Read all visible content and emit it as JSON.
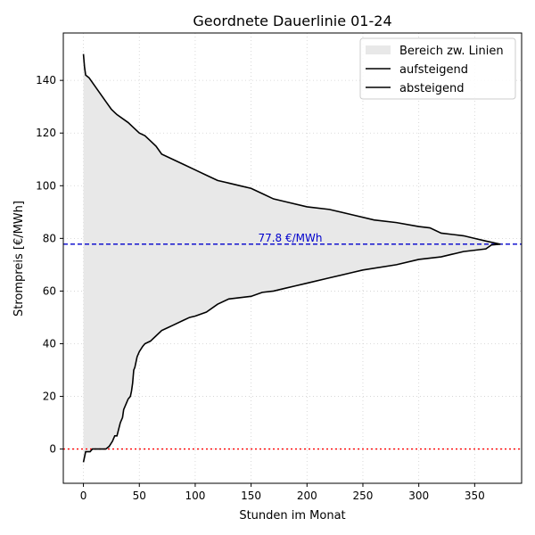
{
  "chart_data": {
    "type": "area",
    "title": "Geordnete Dauerlinie 01-24",
    "xlabel": "Stunden im Monat",
    "ylabel": "Strompreis [€/MWh]",
    "xlim": [
      -18,
      392
    ],
    "ylim": [
      -13,
      158
    ],
    "xticks": [
      0,
      50,
      100,
      150,
      200,
      250,
      300,
      350
    ],
    "yticks": [
      0,
      20,
      40,
      60,
      80,
      100,
      120,
      140
    ],
    "grid": true,
    "legend_position": "top-right",
    "legend": [
      {
        "label": "Bereich zw. Linien",
        "kind": "patch",
        "color": "#e8e8e8"
      },
      {
        "label": "aufsteigend",
        "kind": "line",
        "color": "#000000"
      },
      {
        "label": "absteigend",
        "kind": "line",
        "color": "#000000"
      }
    ],
    "series": [
      {
        "name": "aufsteigend",
        "color": "#000000",
        "x": [
          0,
          1,
          2,
          6,
          8,
          10,
          15,
          20,
          23,
          26,
          28,
          30,
          33,
          35,
          36,
          38,
          40,
          42,
          43,
          44,
          45,
          46,
          47,
          48,
          50,
          53,
          55,
          60,
          65,
          70,
          75,
          80,
          90,
          95,
          100,
          110,
          120,
          130,
          140,
          150,
          160,
          170,
          180,
          190,
          200,
          220,
          240,
          250,
          280,
          300,
          320,
          330,
          340,
          350,
          360,
          365,
          373
        ],
        "y": [
          -5,
          -3,
          -1,
          -1,
          0,
          0,
          0,
          0,
          1,
          3,
          5,
          5,
          10,
          12,
          15,
          17,
          19,
          20,
          22,
          25,
          30,
          31,
          33,
          35,
          37,
          39,
          40,
          41,
          43,
          45,
          46,
          47,
          49,
          50,
          50.5,
          52,
          55,
          57,
          57.5,
          58,
          59.5,
          60,
          61,
          62,
          63,
          65,
          67,
          68,
          70,
          72,
          73,
          74,
          75,
          75.5,
          76,
          77.5,
          77.8
        ]
      },
      {
        "name": "absteigend",
        "color": "#000000",
        "x": [
          0,
          1,
          2,
          5,
          10,
          15,
          20,
          25,
          30,
          40,
          45,
          50,
          55,
          60,
          65,
          70,
          80,
          90,
          100,
          110,
          120,
          130,
          140,
          150,
          160,
          170,
          180,
          200,
          220,
          240,
          260,
          280,
          300,
          310,
          320,
          340,
          350,
          360,
          373
        ],
        "y": [
          150,
          145,
          142,
          141,
          138,
          135,
          132,
          129,
          127,
          124,
          122,
          120,
          119,
          117,
          115,
          112,
          110,
          108,
          106,
          104,
          102,
          101,
          100,
          99,
          97,
          95,
          94,
          92,
          91,
          89,
          87,
          86,
          84.5,
          84,
          82,
          81,
          80,
          79,
          77.8
        ]
      }
    ],
    "reference_lines": [
      {
        "orientation": "horizontal",
        "y": 77.8,
        "color": "#0000cc",
        "style": "dashed",
        "label": "77.8 €/MWh",
        "label_x": 185
      },
      {
        "orientation": "horizontal",
        "y": 0,
        "color": "#ff0000",
        "style": "dotted"
      }
    ]
  }
}
